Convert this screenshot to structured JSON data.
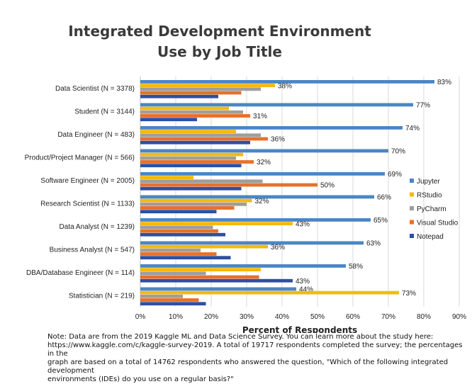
{
  "chart_data": {
    "type": "bar",
    "orientation": "horizontal",
    "title": [
      "Integrated Development Environment",
      "Use by Job Title"
    ],
    "xlabel": "Percent of Respondents",
    "xlim": [
      0,
      90
    ],
    "xticks": [
      "0%",
      "10%",
      "20%",
      "30%",
      "40%",
      "50%",
      "60%",
      "70%",
      "80%",
      "90%"
    ],
    "legend_position": "right",
    "grid": true,
    "categories": [
      "Data Scientist (N = 3378)",
      "Student (N = 3144)",
      "Data Engineer (N = 483)",
      "Product/Project Manager (N = 566)",
      "Software Engineer (N = 2005)",
      "Research Scientist (N = 1133)",
      "Data Analyst (N = 1239)",
      "Business Analyst (N = 547)",
      "DBA/Database Engineer (N = 114)",
      "Statistician (N = 219)"
    ],
    "series": [
      {
        "name": "Jupyter",
        "color": "#4A86C5",
        "values": [
          83,
          77,
          74,
          70,
          69,
          66,
          65,
          63,
          58,
          44
        ]
      },
      {
        "name": "RStudio",
        "color": "#F5B90F",
        "values": [
          38,
          25,
          27,
          29,
          15,
          31.5,
          43,
          36,
          34,
          73
        ]
      },
      {
        "name": "PyCharm",
        "color": "#9E9E9E",
        "values": [
          34,
          29,
          34,
          27,
          34.5,
          30,
          20.5,
          17,
          18.5,
          12
        ]
      },
      {
        "name": "Visual Studio",
        "color": "#E8702A",
        "values": [
          28.5,
          31,
          36,
          32,
          50,
          26.5,
          22,
          21.5,
          33.5,
          16.5
        ]
      },
      {
        "name": "Notepad",
        "color": "#2F4FA0",
        "values": [
          22,
          16,
          31,
          28.5,
          28.5,
          21.5,
          24,
          25.5,
          43,
          18.5
        ]
      }
    ],
    "data_labels": [
      [
        "83%",
        "38%",
        "",
        "",
        ""
      ],
      [
        "77%",
        "",
        "",
        "31%",
        ""
      ],
      [
        "74%",
        "",
        "",
        "36%",
        ""
      ],
      [
        "70%",
        "",
        "",
        "32%",
        ""
      ],
      [
        "69%",
        "",
        "",
        "50%",
        ""
      ],
      [
        "66%",
        "32%",
        "",
        "",
        ""
      ],
      [
        "65%",
        "43%",
        "",
        "",
        ""
      ],
      [
        "63%",
        "36%",
        "",
        "",
        ""
      ],
      [
        "58%",
        "",
        "",
        "",
        "43%"
      ],
      [
        "44%",
        "73%",
        "",
        "",
        ""
      ]
    ]
  },
  "note": {
    "line1": "Note: Data are from the 2019 Kaggle ML and Data Science Survey. You can learn more about the study here:",
    "line2": "https://www.kaggle.com/c/kaggle-survey-2019. A total of 19717 respondents completed the survey; the percentages in the",
    "line3": "graph are based on a total of 14762 respondents who answered the question, \"Which of the following integrated development",
    "line4": "environments (IDEs) do you use on a regular basis?\""
  }
}
